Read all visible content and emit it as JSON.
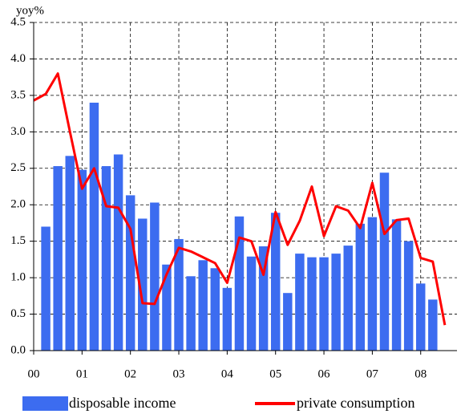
{
  "chart_data": {
    "type": "combo",
    "y_axis_label": "yoy%",
    "categories": [
      "00",
      null,
      null,
      null,
      "01",
      null,
      null,
      null,
      "02",
      null,
      null,
      null,
      "03",
      null,
      null,
      null,
      "04",
      null,
      null,
      null,
      "05",
      null,
      null,
      null,
      "06",
      null,
      null,
      null,
      "07",
      null,
      null,
      null,
      "08",
      null,
      null
    ],
    "series": [
      {
        "name": "disposable income",
        "type": "bar",
        "color": "#3c6cf0",
        "values": [
          null,
          1.7,
          2.53,
          2.67,
          2.48,
          3.4,
          2.53,
          2.69,
          2.13,
          1.81,
          2.03,
          1.18,
          1.53,
          1.02,
          1.24,
          1.13,
          0.86,
          1.84,
          1.29,
          1.43,
          1.89,
          0.79,
          1.33,
          1.28,
          1.28,
          1.33,
          1.44,
          1.74,
          1.83,
          2.44,
          1.8,
          1.5,
          0.92,
          0.7,
          null
        ]
      },
      {
        "name": "private consumption",
        "type": "line",
        "color": "#ff0000",
        "values": [
          3.43,
          3.52,
          3.8,
          3.0,
          2.22,
          2.5,
          1.98,
          1.96,
          1.67,
          0.65,
          0.64,
          1.05,
          1.41,
          1.36,
          1.28,
          1.2,
          0.93,
          1.55,
          1.5,
          1.04,
          1.9,
          1.45,
          1.78,
          2.25,
          1.57,
          1.98,
          1.92,
          1.68,
          2.3,
          1.6,
          1.79,
          1.81,
          1.27,
          1.22,
          0.35
        ]
      }
    ],
    "ylim": [
      0,
      4.5
    ],
    "yticks": [
      {
        "value": 0,
        "label": "0.0"
      },
      {
        "value": 0.5,
        "label": "0.5"
      },
      {
        "value": 1,
        "label": "1.0"
      },
      {
        "value": 1.5,
        "label": "1.5"
      },
      {
        "value": 2,
        "label": "2.0"
      },
      {
        "value": 2.5,
        "label": "2.5"
      },
      {
        "value": 3,
        "label": "3.0"
      },
      {
        "value": 3.5,
        "label": "3.5"
      },
      {
        "value": 4,
        "label": "4.0"
      },
      {
        "value": 4.5,
        "label": "4.5"
      }
    ],
    "grid": true,
    "legend": "bottom"
  }
}
